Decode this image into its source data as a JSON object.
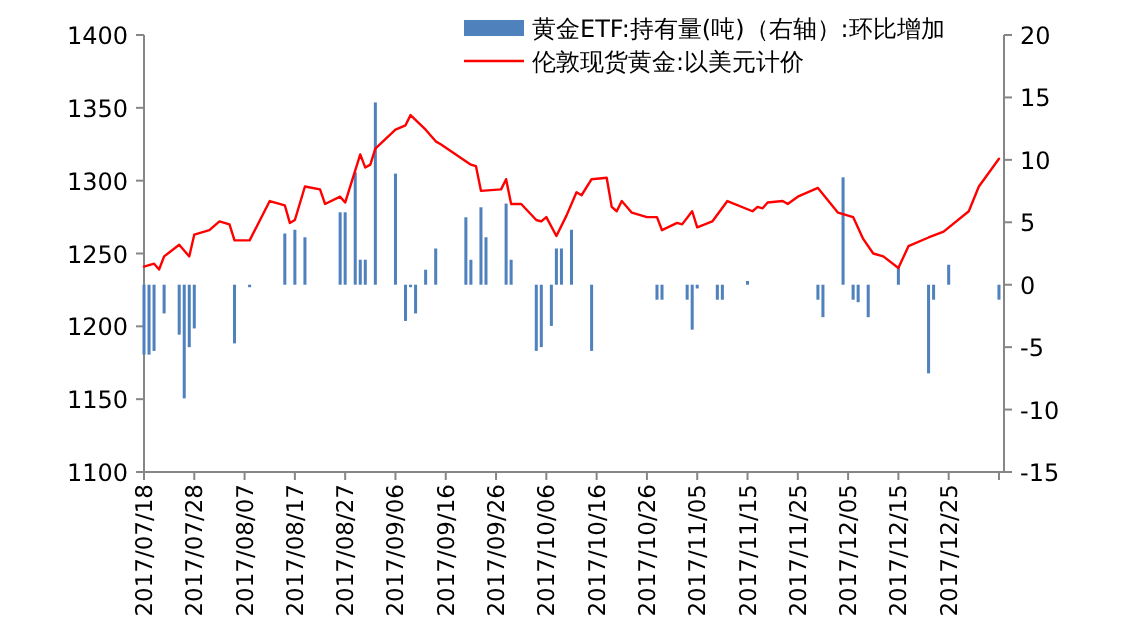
{
  "chart_data": {
    "type": "line",
    "xlim": [
      "2017-07-18",
      "2018-01-05"
    ],
    "xticks": [
      {
        "value": "2017-07-18",
        "label": "2017/07/18"
      },
      {
        "value": "2017-07-28",
        "label": "2017/07/28"
      },
      {
        "value": "2017-08-07",
        "label": "2017/08/07"
      },
      {
        "value": "2017-08-17",
        "label": "2017/08/17"
      },
      {
        "value": "2017-08-27",
        "label": "2017/08/27"
      },
      {
        "value": "2017-09-06",
        "label": "2017/09/06"
      },
      {
        "value": "2017-09-16",
        "label": "2017/09/16"
      },
      {
        "value": "2017-09-26",
        "label": "2017/09/26"
      },
      {
        "value": "2017-10-06",
        "label": "2017/10/06"
      },
      {
        "value": "2017-10-16",
        "label": "2017/10/16"
      },
      {
        "value": "2017-10-26",
        "label": "2017/10/26"
      },
      {
        "value": "2017-11-05",
        "label": "2017/11/05"
      },
      {
        "value": "2017-11-15",
        "label": "2017/11/15"
      },
      {
        "value": "2017-11-25",
        "label": "2017/11/25"
      },
      {
        "value": "2017-12-05",
        "label": "2017/12/05"
      },
      {
        "value": "2017-12-15",
        "label": "2017/12/15"
      },
      {
        "value": "2017-12-25",
        "label": "2017/12/25"
      },
      {
        "value": "2018-01-04",
        "label": null
      }
    ],
    "ylim": [
      1100,
      1400
    ],
    "yticks": [
      1100,
      1150,
      1200,
      1250,
      1300,
      1350,
      1400
    ],
    "y2lim": [
      -15,
      20
    ],
    "y2ticks": [
      -15,
      -10,
      -5,
      0,
      5,
      10,
      15,
      20
    ],
    "grid": false,
    "legend": "top",
    "series": [
      {
        "name": "黄金ETF:持有量(吨)（右轴）:环比增加",
        "type": "bar",
        "axis": "y2",
        "color": "#4f81bd",
        "x": [
          "2017-07-18",
          "2017-07-19",
          "2017-07-20",
          "2017-07-22",
          "2017-07-25",
          "2017-07-26",
          "2017-07-27",
          "2017-07-28",
          "2017-08-05",
          "2017-08-08",
          "2017-08-15",
          "2017-08-17",
          "2017-08-19",
          "2017-08-26",
          "2017-08-27",
          "2017-08-29",
          "2017-08-30",
          "2017-08-31",
          "2017-09-02",
          "2017-09-06",
          "2017-09-08",
          "2017-09-09",
          "2017-09-10",
          "2017-09-12",
          "2017-09-14",
          "2017-09-20",
          "2017-09-21",
          "2017-09-23",
          "2017-09-24",
          "2017-09-28",
          "2017-09-29",
          "2017-10-04",
          "2017-10-05",
          "2017-10-07",
          "2017-10-08",
          "2017-10-09",
          "2017-10-11",
          "2017-10-15",
          "2017-10-28",
          "2017-10-29",
          "2017-11-03",
          "2017-11-04",
          "2017-11-05",
          "2017-11-09",
          "2017-11-10",
          "2017-11-15",
          "2017-11-29",
          "2017-11-30",
          "2017-12-04",
          "2017-12-06",
          "2017-12-07",
          "2017-12-09",
          "2017-12-15",
          "2017-12-21",
          "2017-12-22",
          "2017-12-25",
          "2018-01-04"
        ],
        "values": [
          -5.6,
          -5.6,
          -5.3,
          -2.3,
          -4.0,
          -9.1,
          -5.0,
          -3.5,
          -4.7,
          -0.2,
          4.1,
          4.4,
          3.8,
          5.8,
          5.8,
          9.0,
          2.0,
          2.0,
          14.6,
          8.9,
          -2.9,
          -0.2,
          -2.3,
          1.2,
          2.9,
          5.4,
          2.0,
          6.2,
          3.8,
          6.5,
          2.0,
          -5.3,
          -5.0,
          -3.3,
          2.9,
          2.9,
          4.4,
          -5.3,
          -1.2,
          -1.2,
          -1.2,
          -3.6,
          -0.3,
          -1.2,
          -1.2,
          0.3,
          -1.2,
          -2.6,
          8.6,
          -1.2,
          -1.4,
          -2.6,
          1.5,
          -7.1,
          -1.2,
          1.6,
          -1.2
        ]
      },
      {
        "name": "伦敦现货黄金:以美元计价",
        "axis": "y",
        "color": "#ff0000",
        "x": [
          "2017-07-18",
          "2017-07-20",
          "2017-07-21",
          "2017-07-22",
          "2017-07-25",
          "2017-07-27",
          "2017-07-28",
          "2017-07-31",
          "2017-08-02",
          "2017-08-04",
          "2017-08-05",
          "2017-08-08",
          "2017-08-12",
          "2017-08-15",
          "2017-08-16",
          "2017-08-17",
          "2017-08-19",
          "2017-08-22",
          "2017-08-23",
          "2017-08-26",
          "2017-08-27",
          "2017-08-30",
          "2017-08-31",
          "2017-09-01",
          "2017-09-02",
          "2017-09-06",
          "2017-09-08",
          "2017-09-09",
          "2017-09-12",
          "2017-09-14",
          "2017-09-15",
          "2017-09-21",
          "2017-09-22",
          "2017-09-23",
          "2017-09-27",
          "2017-09-28",
          "2017-09-29",
          "2017-10-01",
          "2017-10-04",
          "2017-10-05",
          "2017-10-06",
          "2017-10-08",
          "2017-10-10",
          "2017-10-12",
          "2017-10-13",
          "2017-10-15",
          "2017-10-18",
          "2017-10-19",
          "2017-10-20",
          "2017-10-21",
          "2017-10-23",
          "2017-10-26",
          "2017-10-28",
          "2017-10-29",
          "2017-11-01",
          "2017-11-02",
          "2017-11-04",
          "2017-11-05",
          "2017-11-08",
          "2017-11-11",
          "2017-11-16",
          "2017-11-17",
          "2017-11-18",
          "2017-11-19",
          "2017-11-22",
          "2017-11-23",
          "2017-11-25",
          "2017-11-29",
          "2017-12-03",
          "2017-12-06",
          "2017-12-08",
          "2017-12-10",
          "2017-12-12",
          "2017-12-15",
          "2017-12-17",
          "2017-12-21",
          "2017-12-24",
          "2017-12-29",
          "2017-12-31",
          "2018-01-04"
        ],
        "values": [
          1241,
          1243,
          1239,
          1248,
          1256,
          1248,
          1263,
          1266,
          1272,
          1270,
          1259,
          1259,
          1286,
          1283,
          1271,
          1273,
          1296,
          1294,
          1284,
          1289,
          1285,
          1318,
          1309,
          1311,
          1322,
          1335,
          1338,
          1345,
          1335,
          1327,
          1325,
          1311,
          1310,
          1293,
          1294,
          1301,
          1284,
          1284,
          1273,
          1272,
          1275,
          1262,
          1276,
          1292,
          1290,
          1301,
          1302,
          1282,
          1279,
          1286,
          1278,
          1275,
          1275,
          1266,
          1271,
          1270,
          1279,
          1268,
          1272,
          1286,
          1279,
          1282,
          1281,
          1285,
          1286,
          1284,
          1289,
          1295,
          1278,
          1275,
          1260,
          1250,
          1248,
          1240,
          1255,
          1261,
          1265,
          1279,
          1296,
          1315
        ]
      }
    ]
  }
}
